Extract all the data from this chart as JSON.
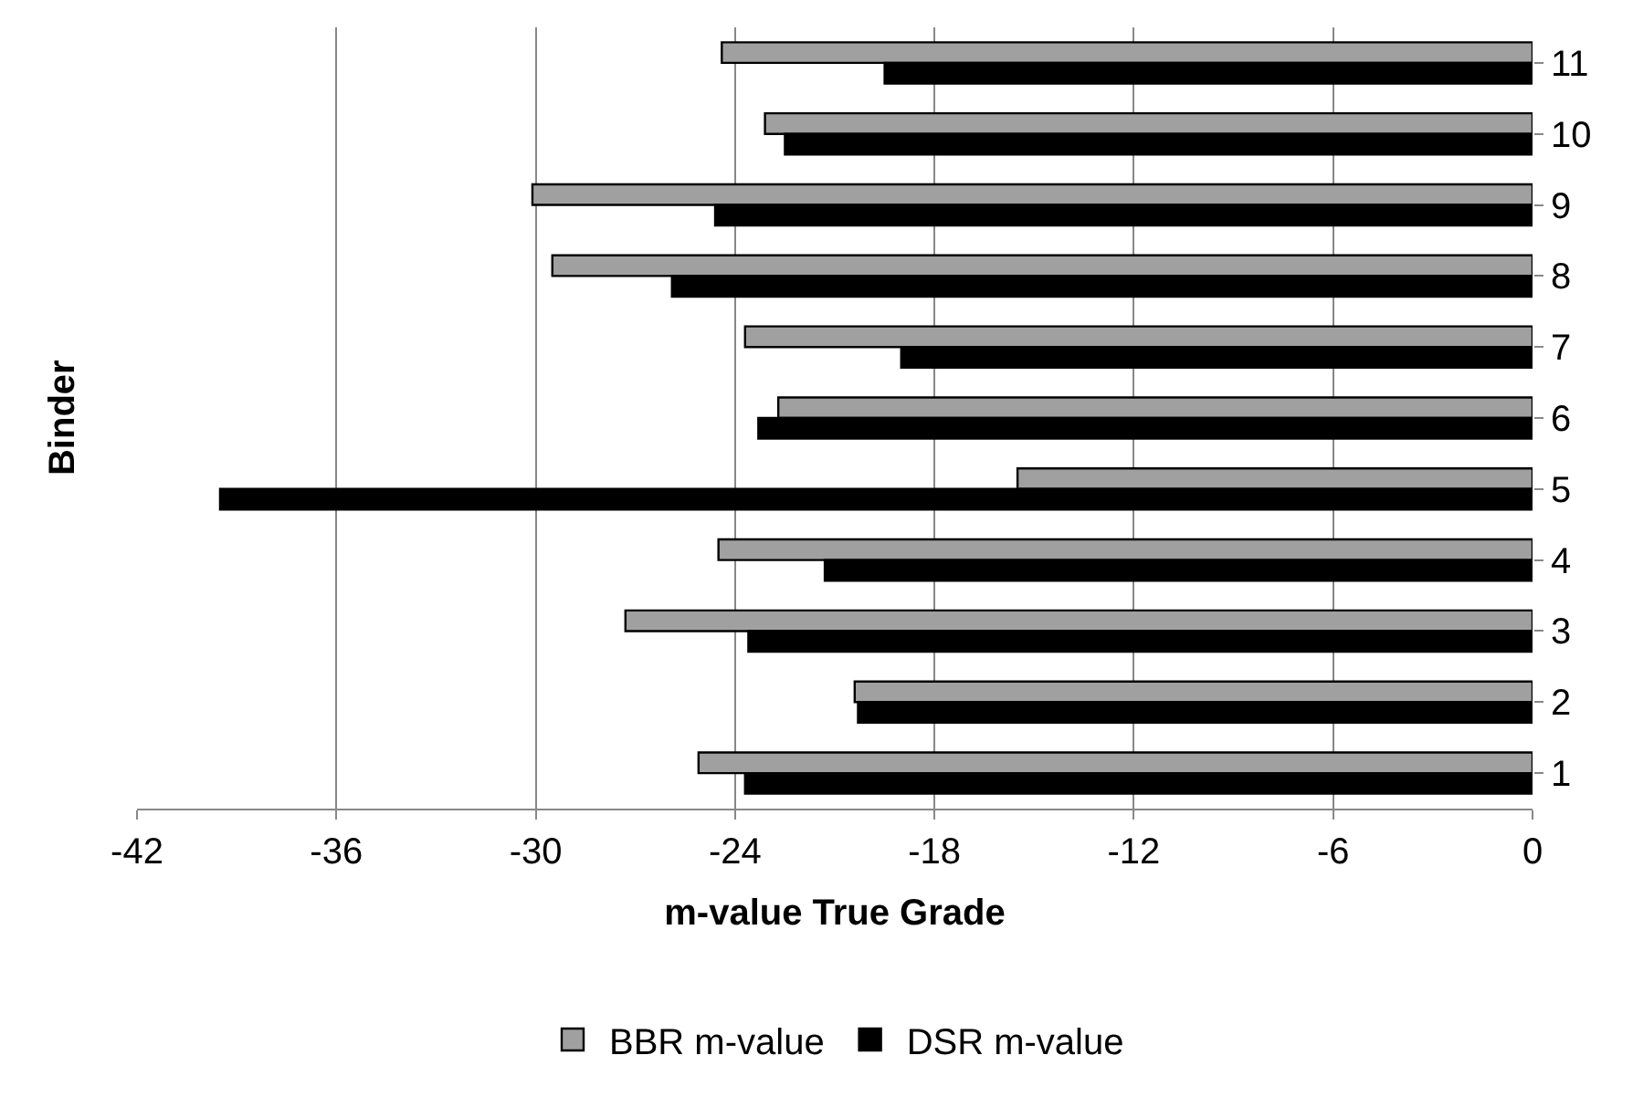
{
  "chart_data": {
    "type": "bar",
    "orientation": "horizontal",
    "xlabel": "m-value True Grade",
    "ylabel": "Binder",
    "categories": [
      "11",
      "10",
      "9",
      "8",
      "7",
      "6",
      "5",
      "4",
      "3",
      "2",
      "1"
    ],
    "series": [
      {
        "name": "BBR m-value",
        "color": "#a0a0a0",
        "values": [
          -24.4,
          -23.1,
          -30.1,
          -29.5,
          -23.7,
          -22.7,
          -15.5,
          -24.5,
          -27.3,
          -20.4,
          -25.1
        ]
      },
      {
        "name": "DSR m-value",
        "color": "#000000",
        "values": [
          -19.5,
          -22.5,
          -24.6,
          -25.9,
          -19.0,
          -23.3,
          -39.5,
          -21.3,
          -23.6,
          -20.3,
          -23.7
        ]
      }
    ],
    "xlim": [
      -42,
      0
    ],
    "xticks": [
      -42,
      -36,
      -30,
      -24,
      -18,
      -12,
      -6,
      0
    ],
    "grid": "x",
    "legend": "bottom"
  }
}
